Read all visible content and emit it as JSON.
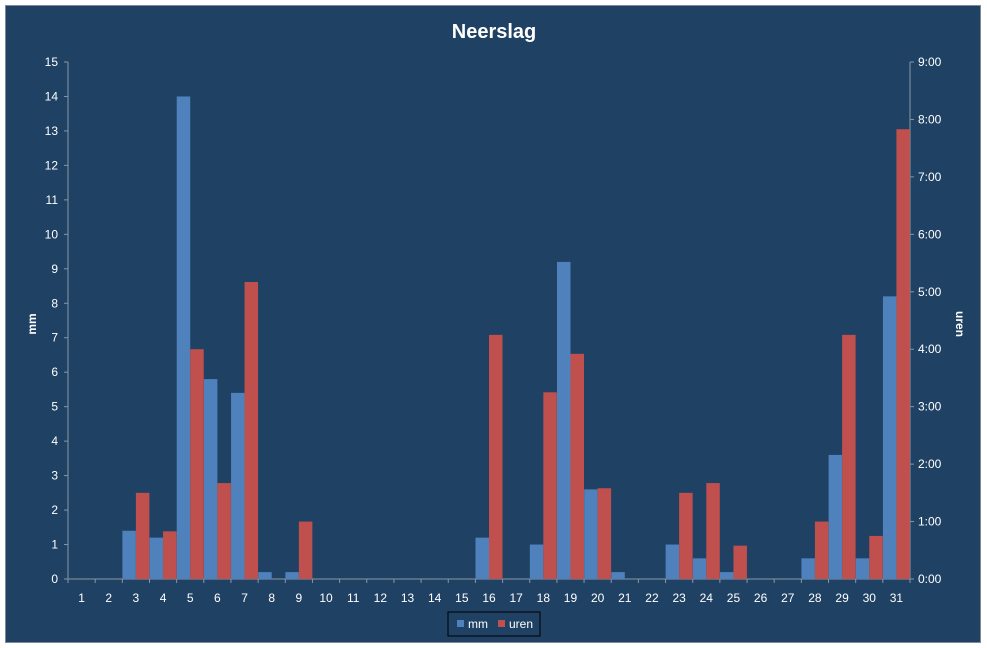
{
  "chart_data": {
    "type": "bar",
    "title": "Neerslag",
    "xlabel": "",
    "ylabel": "mm",
    "y2label": "uren",
    "categories": [
      "1",
      "2",
      "3",
      "4",
      "5",
      "6",
      "7",
      "8",
      "9",
      "10",
      "11",
      "12",
      "13",
      "14",
      "15",
      "16",
      "17",
      "18",
      "19",
      "20",
      "21",
      "22",
      "23",
      "24",
      "25",
      "26",
      "27",
      "28",
      "29",
      "30",
      "31"
    ],
    "ylim": [
      0,
      15
    ],
    "yticks": [
      "0",
      "1",
      "2",
      "3",
      "4",
      "5",
      "6",
      "7",
      "8",
      "9",
      "10",
      "11",
      "12",
      "13",
      "14",
      "15"
    ],
    "y2lim_hours": [
      0,
      9
    ],
    "y2ticks": [
      "0:00",
      "1:00",
      "2:00",
      "3:00",
      "4:00",
      "5:00",
      "6:00",
      "7:00",
      "8:00",
      "9:00"
    ],
    "series": [
      {
        "name": "mm",
        "axis": "left",
        "color": "#4f81bd",
        "values": [
          0,
          0,
          1.4,
          1.2,
          14.0,
          5.8,
          5.4,
          0.2,
          0.2,
          0,
          0,
          0,
          0,
          0,
          0,
          1.2,
          0,
          1.0,
          9.2,
          2.6,
          0.2,
          0,
          1.0,
          0.6,
          0.2,
          0,
          0,
          0.6,
          3.6,
          0.6,
          8.2
        ]
      },
      {
        "name": "uren",
        "axis": "right",
        "unit": "hours",
        "color": "#c0504d",
        "values": [
          0,
          0,
          1.5,
          0.83,
          4.0,
          1.67,
          5.17,
          0,
          1.0,
          0,
          0,
          0,
          0,
          0,
          0,
          4.25,
          0,
          3.25,
          3.92,
          1.58,
          0,
          0,
          1.5,
          1.67,
          0.58,
          0,
          0,
          1.0,
          4.25,
          0.75,
          7.83
        ]
      }
    ],
    "grid": false,
    "legend_position": "bottom"
  }
}
